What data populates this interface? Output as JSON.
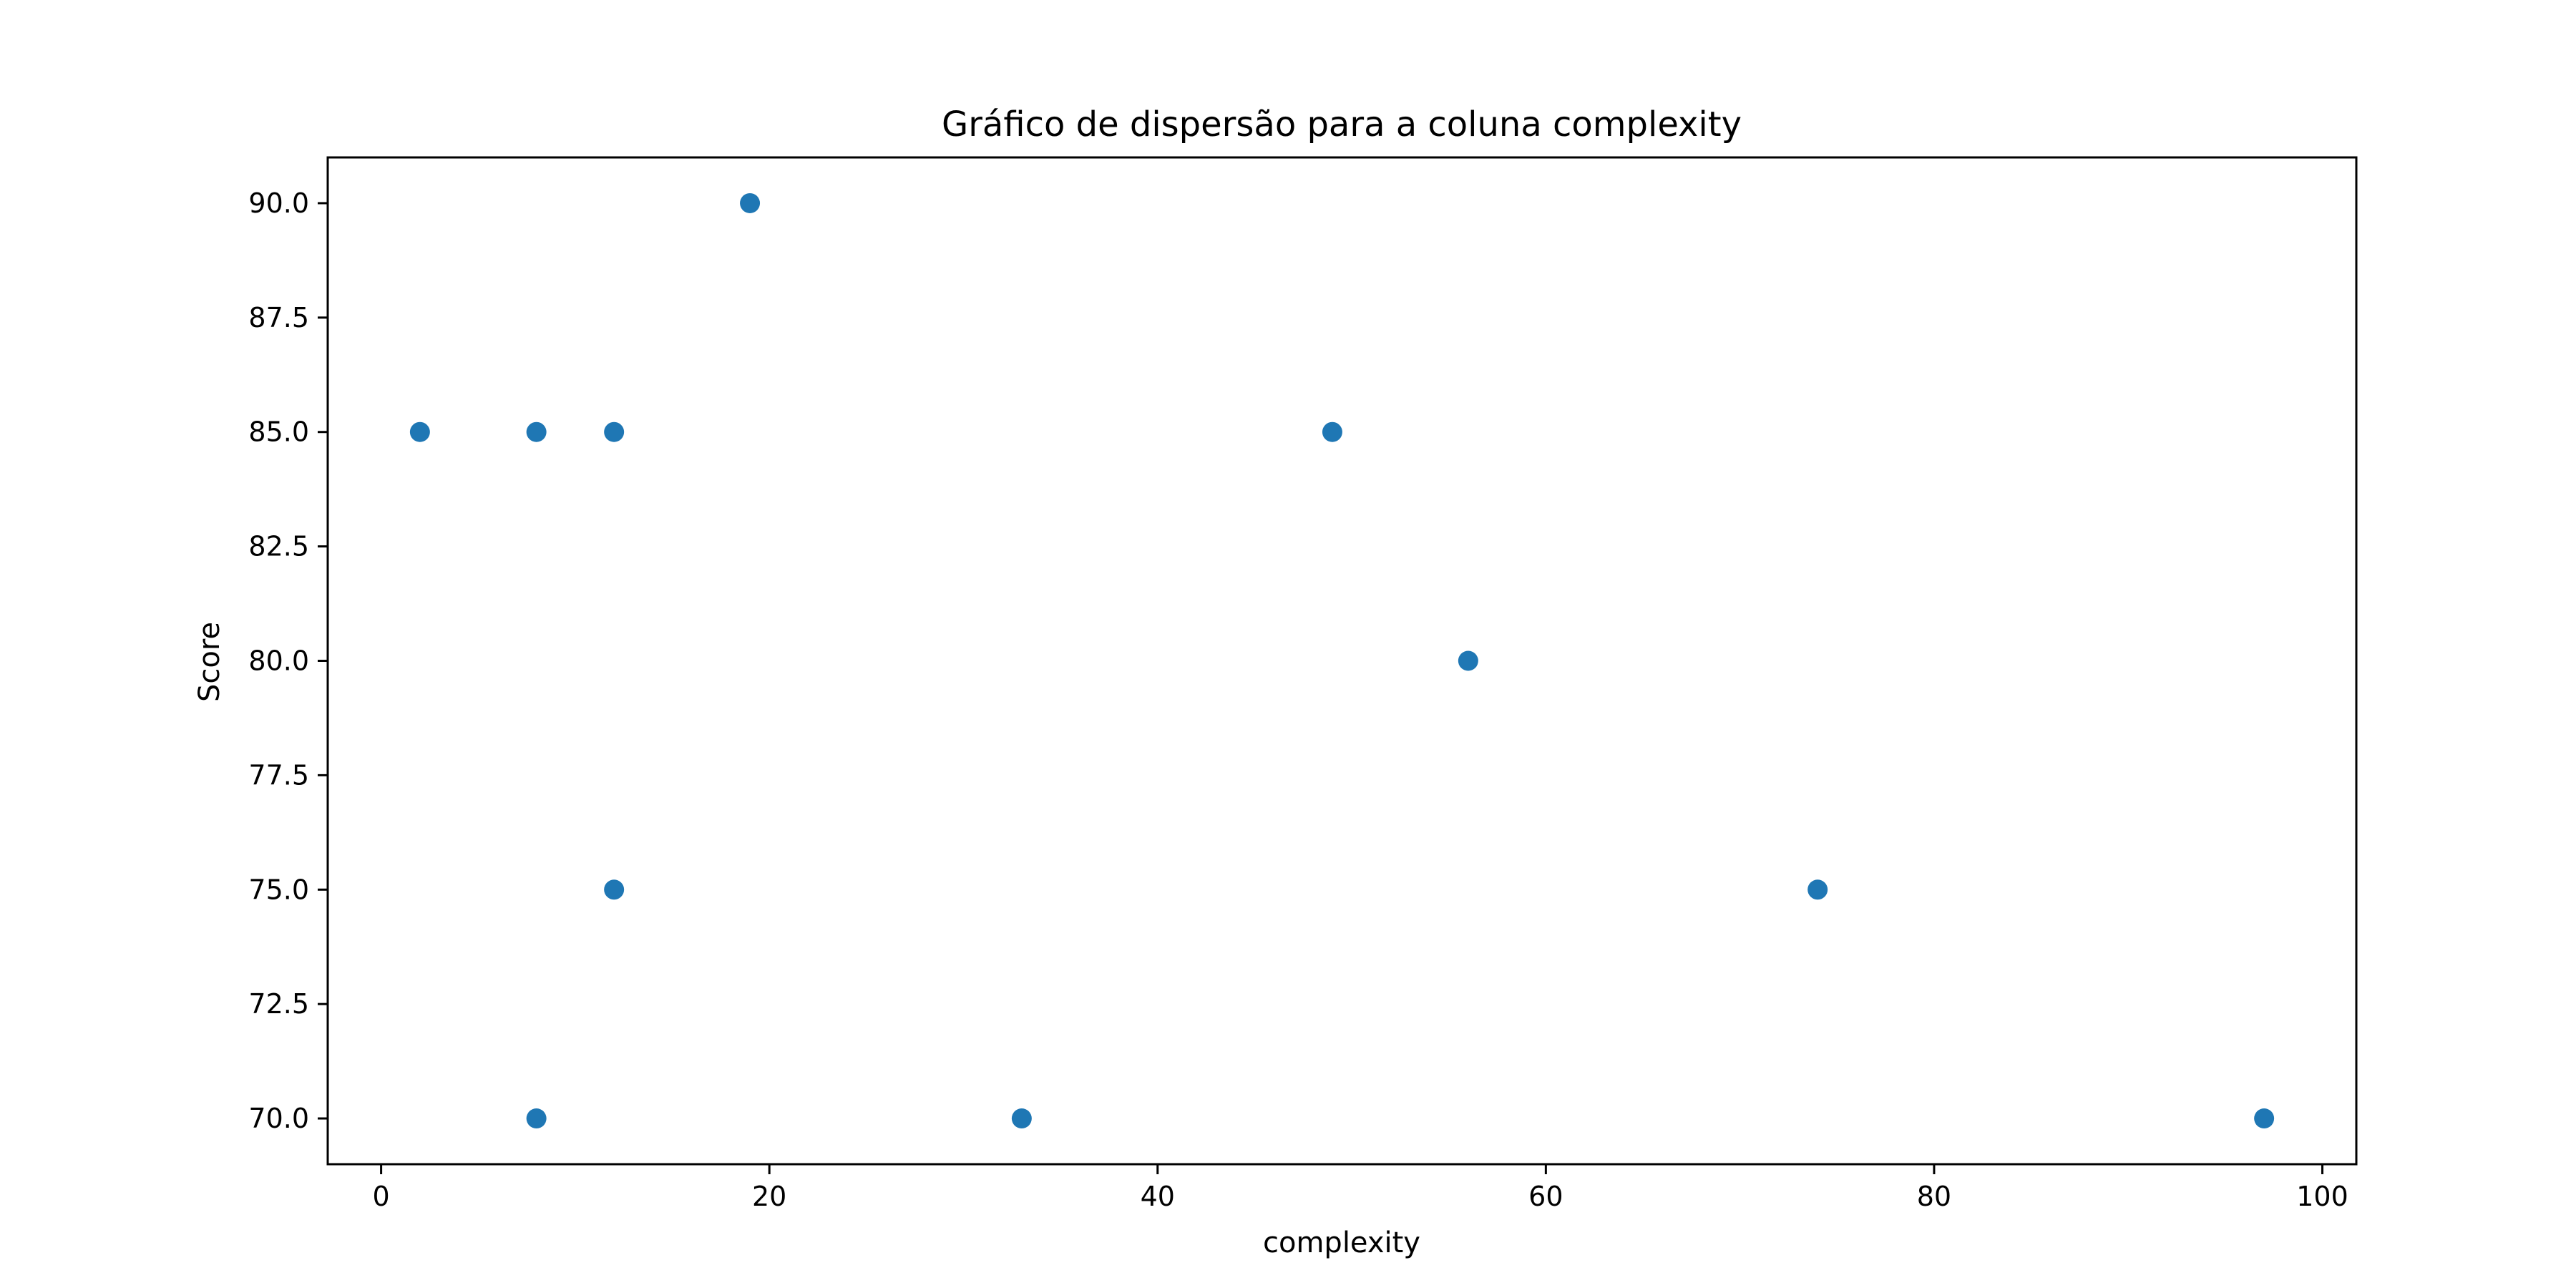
{
  "chart_data": {
    "type": "scatter",
    "title": "Gráfico de dispersão para a coluna complexity",
    "xlabel": "complexity",
    "ylabel": "Score",
    "xlim": [
      -2.75,
      101.75
    ],
    "ylim": [
      69.0,
      91.0
    ],
    "x_ticks": [
      0,
      20,
      40,
      60,
      80,
      100
    ],
    "x_tick_labels": [
      "0",
      "20",
      "40",
      "60",
      "80",
      "100"
    ],
    "y_ticks": [
      70.0,
      72.5,
      75.0,
      77.5,
      80.0,
      82.5,
      85.0,
      87.5,
      90.0
    ],
    "y_tick_labels": [
      "70.0",
      "72.5",
      "75.0",
      "77.5",
      "80.0",
      "82.5",
      "85.0",
      "87.5",
      "90.0"
    ],
    "grid": false,
    "marker_color": "#1f77b4",
    "points": [
      {
        "x": 2,
        "y": 85
      },
      {
        "x": 8,
        "y": 85
      },
      {
        "x": 12,
        "y": 85
      },
      {
        "x": 19,
        "y": 90
      },
      {
        "x": 49,
        "y": 85
      },
      {
        "x": 56,
        "y": 80
      },
      {
        "x": 12,
        "y": 75
      },
      {
        "x": 74,
        "y": 75
      },
      {
        "x": 8,
        "y": 70
      },
      {
        "x": 33,
        "y": 70
      },
      {
        "x": 97,
        "y": 70
      }
    ]
  }
}
